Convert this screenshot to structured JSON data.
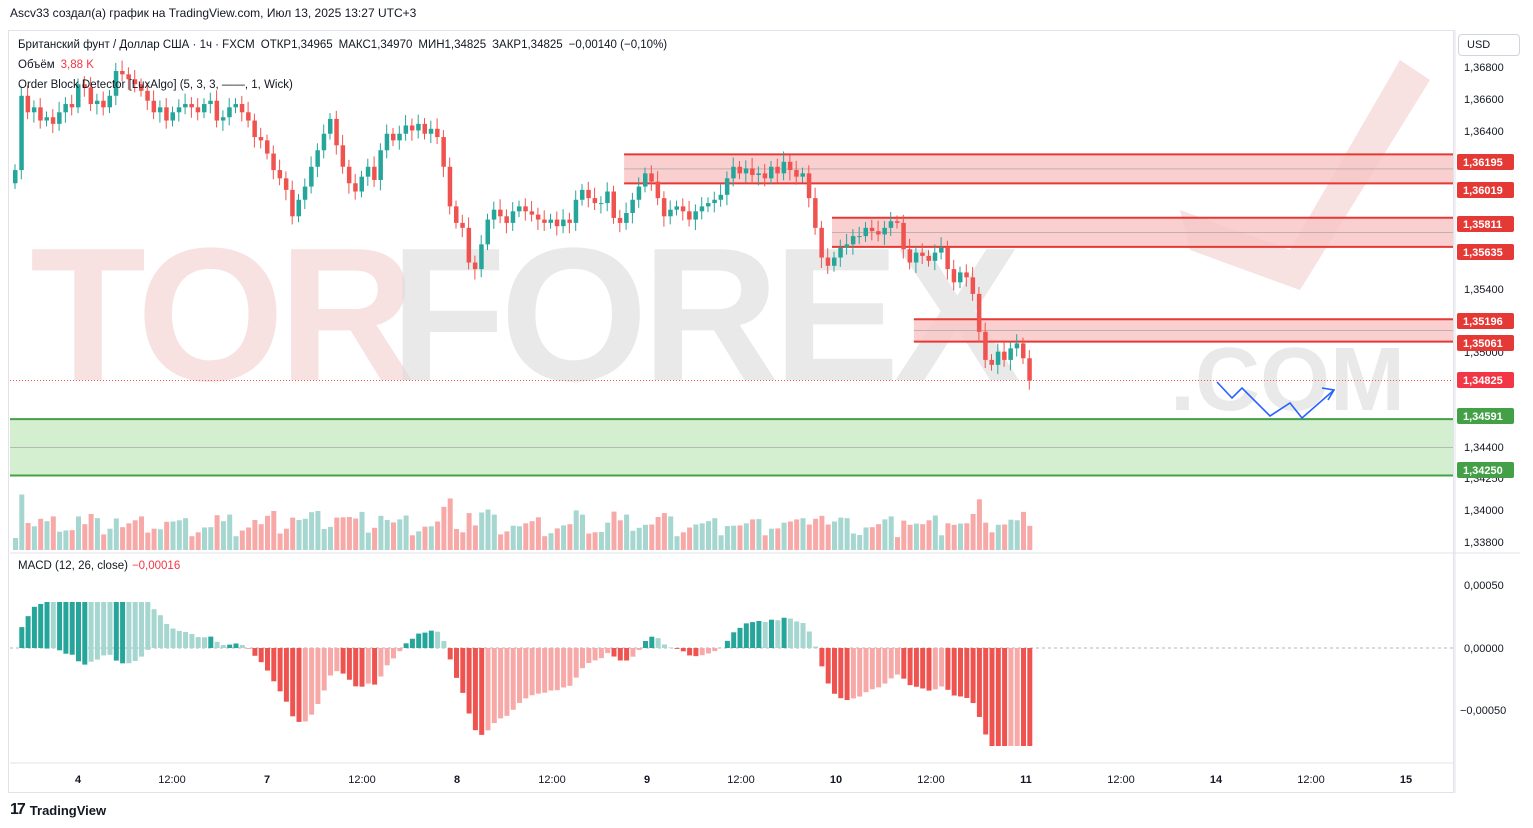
{
  "header": {
    "credit": "Ascv33 создал(а) график на TradingView.com, Июл 13, 2025 13:27 UTC+3"
  },
  "legend": {
    "symbol": "Британский фунт / Доллар США · 1ч · FXCM",
    "open": "ОТКР1,34965",
    "high": "МАКС1,34970",
    "low": "МИН1,34825",
    "close": "ЗАКР1,34825",
    "change": "−0,00140 (−0,10%)",
    "volume_label": "Объём",
    "volume_value": "3,88 K",
    "indicator": "Order Block Detector [LuxAlgo] (5, 3, 3, ——, 1, Wick)"
  },
  "macd_legend": {
    "label": "MACD (12, 26, close)",
    "value": "−0,00016"
  },
  "currency": "USD",
  "watermark": "TORFOREX.COM",
  "footer": {
    "brand": "TradingView",
    "logo_glyph": "17"
  },
  "colors": {
    "bull": "#26a69a",
    "bear": "#ef5350",
    "bull_light": "#a5d6cf",
    "bear_light": "#f7a9a7",
    "ob_bear_fill": "#f8c7c7",
    "ob_bear_line": "#e53935",
    "ob_bull_fill": "#cdebc8",
    "ob_bull_line": "#43a047",
    "arrow": "#2962ff"
  },
  "chart_data": {
    "type": "candlestick",
    "symbol": "GBPUSD",
    "timeframe": "1h",
    "ylim": [
      1.3375,
      1.369
    ],
    "y_ticks": [
      "1,36800",
      "1,36600",
      "1,36400",
      "1,35400",
      "1,35000",
      "1,34400",
      "1,34250",
      "1,34000",
      "1,33800"
    ],
    "x_ticks": [
      "4",
      "12:00",
      "7",
      "12:00",
      "8",
      "12:00",
      "9",
      "12:00",
      "10",
      "12:00",
      "11",
      "12:00",
      "14",
      "12:00",
      "15"
    ],
    "price_tags": [
      {
        "value": "1,36195",
        "kind": "ob_bear"
      },
      {
        "value": "1,36019",
        "kind": "ob_bear"
      },
      {
        "value": "1,35811",
        "kind": "ob_bear"
      },
      {
        "value": "1,35635",
        "kind": "ob_bear"
      },
      {
        "value": "1,35196",
        "kind": "ob_bear"
      },
      {
        "value": "1,35061",
        "kind": "ob_bear"
      },
      {
        "value": "1,34825",
        "kind": "last"
      },
      {
        "value": "1,34591",
        "kind": "ob_bull"
      },
      {
        "value": "1,34250",
        "kind": "ob_bull"
      }
    ],
    "order_blocks": [
      {
        "type": "bearish",
        "top": 1.36195,
        "bottom": 1.36019,
        "start_bar": 97
      },
      {
        "type": "bearish",
        "top": 1.35811,
        "bottom": 1.35635,
        "start_bar": 130
      },
      {
        "type": "bearish",
        "top": 1.35196,
        "bottom": 1.35061,
        "start_bar": 143
      },
      {
        "type": "bullish",
        "top": 1.34591,
        "bottom": 1.3425,
        "start_bar": 0
      }
    ],
    "last_price": 1.34825,
    "closes": [
      1.361,
      1.3655,
      1.3645,
      1.3648,
      1.364,
      1.3642,
      1.3638,
      1.3645,
      1.365,
      1.3648,
      1.3662,
      1.366,
      1.365,
      1.3652,
      1.3648,
      1.3655,
      1.367,
      1.3668,
      1.3665,
      1.3662,
      1.3658,
      1.3652,
      1.3645,
      1.3648,
      1.364,
      1.3645,
      1.3648,
      1.365,
      1.3648,
      1.3645,
      1.365,
      1.3652,
      1.364,
      1.3642,
      1.3648,
      1.365,
      1.3645,
      1.364,
      1.363,
      1.3628,
      1.362,
      1.361,
      1.3605,
      1.3598,
      1.3582,
      1.3592,
      1.36,
      1.3612,
      1.3622,
      1.3632,
      1.3641,
      1.3625,
      1.3612,
      1.3602,
      1.3597,
      1.3606,
      1.3612,
      1.3604,
      1.3622,
      1.3632,
      1.3628,
      1.3632,
      1.3637,
      1.3634,
      1.3638,
      1.3632,
      1.3635,
      1.363,
      1.3612,
      1.3588,
      1.3578,
      1.3575,
      1.3554,
      1.355,
      1.3565,
      1.358,
      1.3586,
      1.3582,
      1.3578,
      1.3585,
      1.3588,
      1.3585,
      1.3583,
      1.358,
      1.3578,
      1.358,
      1.3576,
      1.358,
      1.3578,
      1.3592,
      1.3598,
      1.3593,
      1.359,
      1.359,
      1.3597,
      1.3581,
      1.3578,
      1.3584,
      1.3592,
      1.36,
      1.3608,
      1.3603,
      1.3593,
      1.3582,
      1.3586,
      1.3588,
      1.3585,
      1.358,
      1.3585,
      1.3588,
      1.359,
      1.3592,
      1.3595,
      1.3605,
      1.3612,
      1.3608,
      1.3611,
      1.3607,
      1.3608,
      1.3605,
      1.3612,
      1.3608,
      1.3615,
      1.361,
      1.3606,
      1.3608,
      1.3593,
      1.3575,
      1.3557,
      1.3552,
      1.3557,
      1.3563,
      1.3565,
      1.357,
      1.357,
      1.3575,
      1.3573,
      1.3571,
      1.3575,
      1.3579,
      1.3578,
      1.3562,
      1.3554,
      1.356,
      1.3558,
      1.3555,
      1.356,
      1.3563,
      1.355,
      1.3542,
      1.3548,
      1.3545,
      1.3535,
      1.3512,
      1.3495,
      1.3492,
      1.35,
      1.3495,
      1.3502,
      1.3505,
      1.3496,
      1.34825
    ]
  }
}
